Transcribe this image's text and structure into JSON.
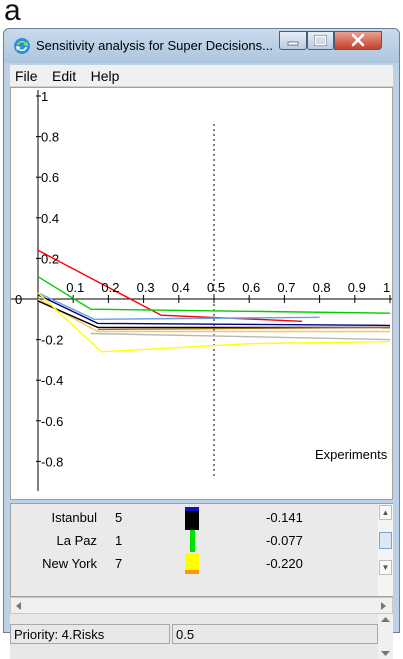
{
  "figure_label": "a",
  "window": {
    "title": "Sensitivity analysis for Super Decisions...",
    "app_icon": "refresh-arrows-icon",
    "controls": [
      "minimize-icon",
      "maximize-icon",
      "close-icon"
    ]
  },
  "menu": {
    "items": [
      "File",
      "Edit",
      "Help"
    ]
  },
  "chart_data": {
    "type": "line",
    "xlabel": "Experiments",
    "xlim": [
      0,
      1
    ],
    "ylim": [
      -1,
      1
    ],
    "x_ticks": [
      "0",
      "0.1",
      "0.2",
      "0.3",
      "0.4",
      "0.5",
      "0.6",
      "0.7",
      "0.8",
      "0.9",
      "1"
    ],
    "y_ticks": [
      "1",
      "0.8",
      "0.6",
      "0.4",
      "0.2",
      "0",
      "-0.2",
      "-0.4",
      "-0.6",
      "-0.8"
    ],
    "marker_x": 0.5,
    "series": [
      {
        "color": "#ff0000",
        "points": [
          [
            0,
            0.24
          ],
          [
            0.35,
            -0.08
          ],
          [
            0.75,
            -0.11
          ]
        ]
      },
      {
        "color": "#00cc00",
        "points": [
          [
            0,
            0.11
          ],
          [
            0.15,
            -0.05
          ],
          [
            1,
            -0.07
          ]
        ]
      },
      {
        "color": "#6aa2e8",
        "points": [
          [
            0,
            0.03
          ],
          [
            0.16,
            -0.1
          ],
          [
            0.8,
            -0.09
          ]
        ]
      },
      {
        "color": "#000080",
        "points": [
          [
            0,
            0.02
          ],
          [
            0.17,
            -0.12
          ],
          [
            1,
            -0.13
          ]
        ]
      },
      {
        "color": "#f5c862",
        "points": [
          [
            0,
            0.0
          ],
          [
            0.17,
            -0.16
          ],
          [
            1,
            -0.16
          ]
        ]
      },
      {
        "color": "#000000",
        "points": [
          [
            0,
            -0.01
          ],
          [
            0.17,
            -0.14
          ],
          [
            1,
            -0.14
          ]
        ]
      },
      {
        "color": "#a06a1a",
        "points": [
          [
            0.17,
            -0.15
          ],
          [
            1,
            -0.14
          ]
        ]
      },
      {
        "color": "#b8b8b8",
        "points": [
          [
            0.15,
            -0.17
          ],
          [
            1,
            -0.2
          ]
        ]
      },
      {
        "color": "#ffff00",
        "points": [
          [
            0,
            0.03
          ],
          [
            0.18,
            -0.26
          ],
          [
            0.6,
            -0.22
          ],
          [
            1,
            -0.21
          ]
        ]
      }
    ]
  },
  "alternatives": [
    {
      "name": "Istanbul",
      "rank": "5",
      "value": "-0.141",
      "colors": [
        "#1010c0",
        "#000000"
      ]
    },
    {
      "name": "La Paz",
      "rank": "1",
      "value": "-0.077",
      "colors": [
        "#00e000"
      ]
    },
    {
      "name": "New York",
      "rank": "7",
      "value": "-0.220",
      "colors": [
        "#ffff00",
        "#ff9900"
      ]
    }
  ],
  "status": {
    "priority_label": "Priority: 4.Risks",
    "priority_value": "0.5"
  }
}
